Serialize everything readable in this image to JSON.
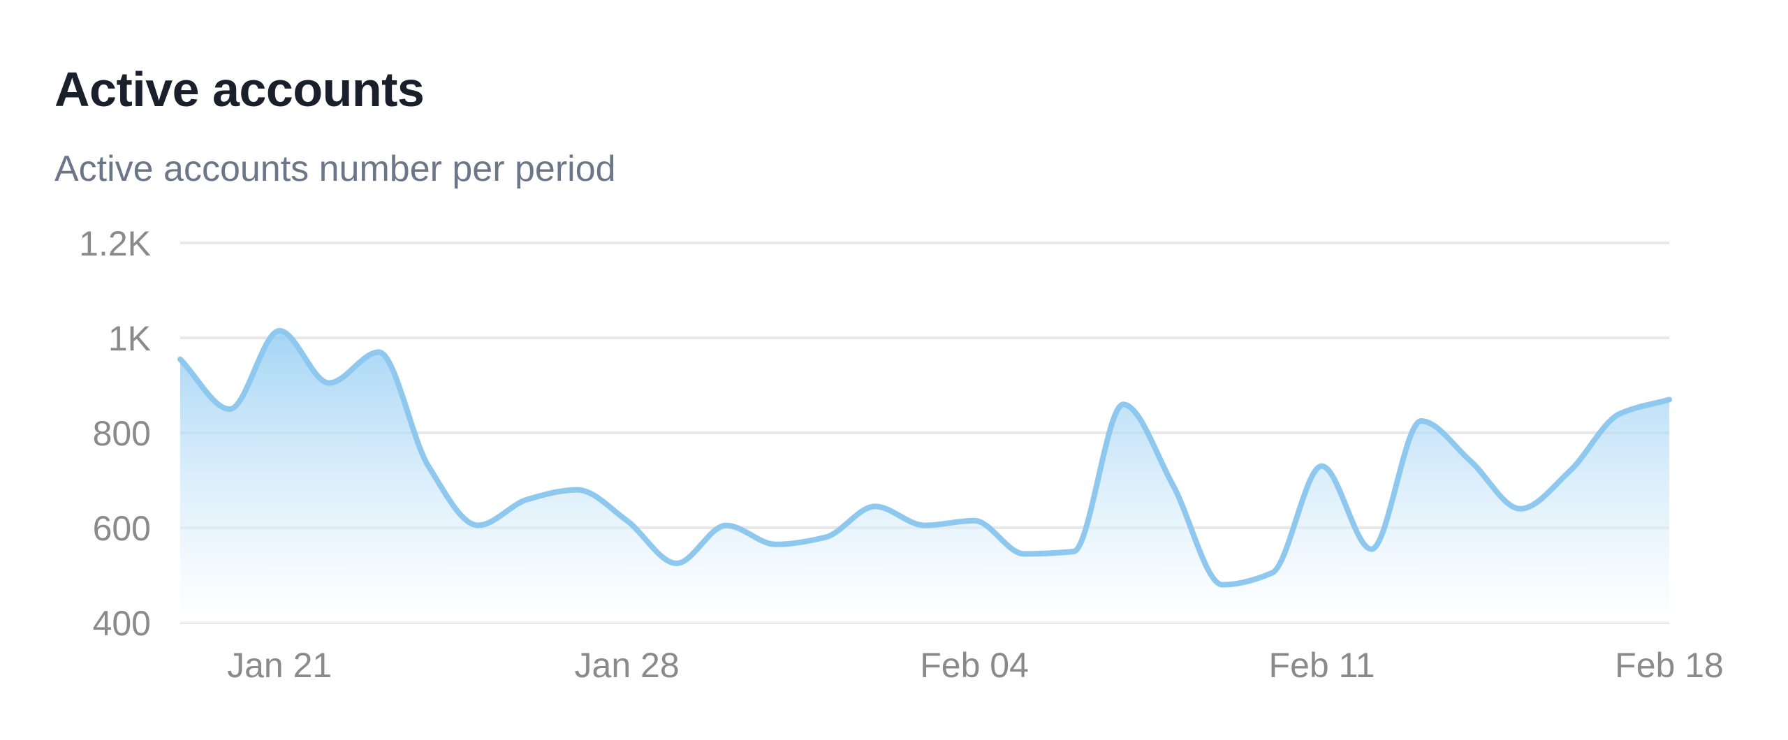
{
  "title": "Active accounts",
  "subtitle": "Active accounts number per period",
  "colors": {
    "line": "#8ec8ef",
    "area_top": "#90cbf3",
    "area_bottom": "#ffffff",
    "grid": "#e8e8e8",
    "title": "#1a1f2c",
    "subtitle": "#6b7689",
    "tick": "#8a8a8a"
  },
  "chart_data": {
    "type": "area",
    "title": "Active accounts",
    "subtitle": "Active accounts number per period",
    "xlabel": "",
    "ylabel": "",
    "ylim": [
      400,
      1200
    ],
    "y_ticks": [
      400,
      600,
      800,
      1000,
      1200
    ],
    "y_tick_labels": [
      "400",
      "600",
      "800",
      "1K",
      "1.2K"
    ],
    "x_ticks": [
      "2024-01-21",
      "2024-01-28",
      "2024-02-04",
      "2024-02-11",
      "2024-02-18"
    ],
    "x_tick_labels": [
      "Jan 21",
      "Jan 28",
      "Feb 04",
      "Feb 11",
      "Feb 18"
    ],
    "xlim": [
      "2024-01-19",
      "2024-02-18"
    ],
    "grid": true,
    "legend": false,
    "series": [
      {
        "x": [
          "2024-01-19",
          "2024-01-20",
          "2024-01-21",
          "2024-01-22",
          "2024-01-23",
          "2024-01-24",
          "2024-01-25",
          "2024-01-26",
          "2024-01-27",
          "2024-01-28",
          "2024-01-29",
          "2024-01-30",
          "2024-01-31",
          "2024-02-01",
          "2024-02-02",
          "2024-02-03",
          "2024-02-04",
          "2024-02-05",
          "2024-02-06",
          "2024-02-07",
          "2024-02-08",
          "2024-02-09",
          "2024-02-10",
          "2024-02-11",
          "2024-02-12",
          "2024-02-13",
          "2024-02-14",
          "2024-02-15",
          "2024-02-16",
          "2024-02-17",
          "2024-02-18"
        ],
        "values": [
          955,
          850,
          1015,
          905,
          970,
          730,
          605,
          660,
          680,
          615,
          525,
          605,
          565,
          580,
          645,
          605,
          615,
          545,
          550,
          860,
          690,
          480,
          505,
          730,
          555,
          825,
          740,
          640,
          720,
          840,
          870
        ]
      }
    ]
  }
}
